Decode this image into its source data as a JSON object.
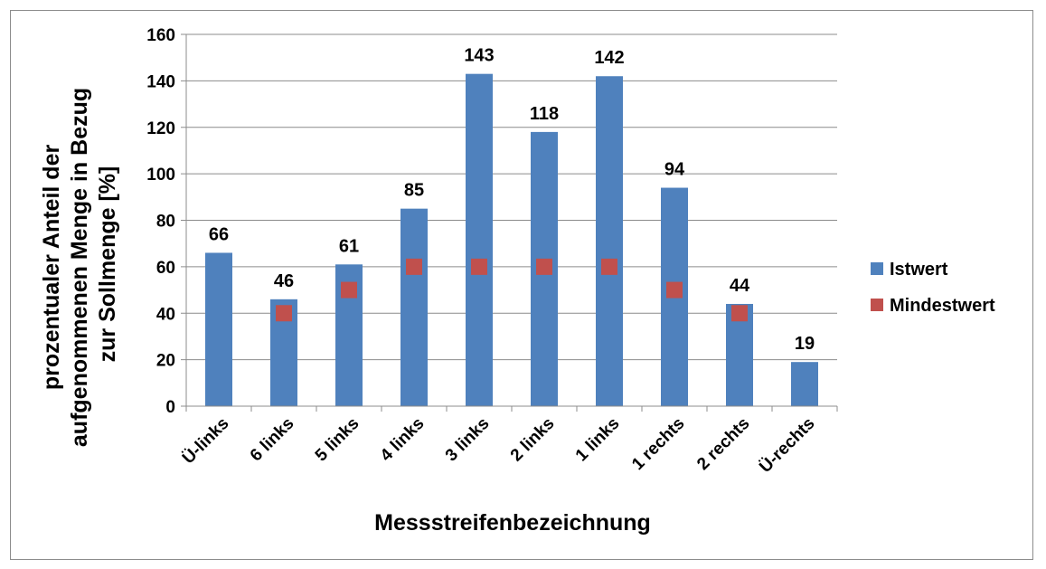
{
  "chart_data": {
    "type": "bar",
    "categories": [
      "Ü-links",
      "6 links",
      "5 links",
      "4 links",
      "3 links",
      "2 links",
      "1 links",
      "1 rechts",
      "2 rechts",
      "Ü-rechts"
    ],
    "series": [
      {
        "name": "Istwert",
        "kind": "bar",
        "color": "#4F81BD",
        "values": [
          66,
          46,
          61,
          85,
          143,
          118,
          142,
          94,
          44,
          19
        ]
      },
      {
        "name": "Mindestwert",
        "kind": "marker",
        "color": "#C0504D",
        "values": [
          null,
          40,
          50,
          60,
          60,
          60,
          60,
          50,
          40,
          null
        ]
      }
    ],
    "data_labels": [
      "66",
      "46",
      "61",
      "85",
      "143",
      "118",
      "142",
      "94",
      "44",
      "19"
    ],
    "title": "",
    "xlabel": "Messstreifenbezeichnung",
    "ylabel_lines": [
      "prozentualer Anteil der",
      "aufgenommenen Menge in Bezug",
      "zur Sollmenge [%]"
    ],
    "ylim": [
      0,
      160
    ],
    "yticks": [
      0,
      20,
      40,
      60,
      80,
      100,
      120,
      140,
      160
    ],
    "grid": true,
    "legend": "right",
    "tick_label_rotation": "-45"
  }
}
